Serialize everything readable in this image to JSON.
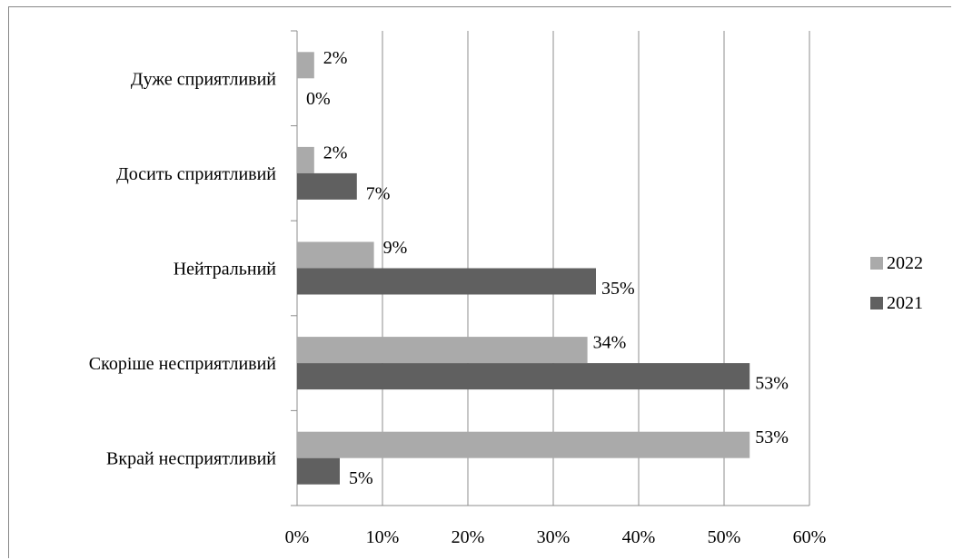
{
  "chart_data": {
    "type": "bar",
    "orientation": "horizontal",
    "categories": [
      "Дуже сприятливий",
      "Досить сприятливий",
      "Нейтральний",
      "Скоріше несприятливий",
      "Вкрай несприятливий"
    ],
    "series": [
      {
        "name": "2022",
        "color": "#aaaaaa",
        "values": [
          2,
          2,
          9,
          34,
          53
        ],
        "labels": [
          "2%",
          "2%",
          "9%",
          "34%",
          "53%"
        ]
      },
      {
        "name": "2021",
        "color": "#606060",
        "values": [
          0,
          7,
          35,
          53,
          5
        ],
        "labels": [
          "0%",
          "7%",
          "35%",
          "53%",
          "5%"
        ]
      }
    ],
    "xlim": [
      0,
      60
    ],
    "xticks": [
      "0%",
      "10%",
      "20%",
      "30%",
      "40%",
      "50%",
      "60%"
    ],
    "grid": "vertical",
    "legend_position": "right"
  }
}
